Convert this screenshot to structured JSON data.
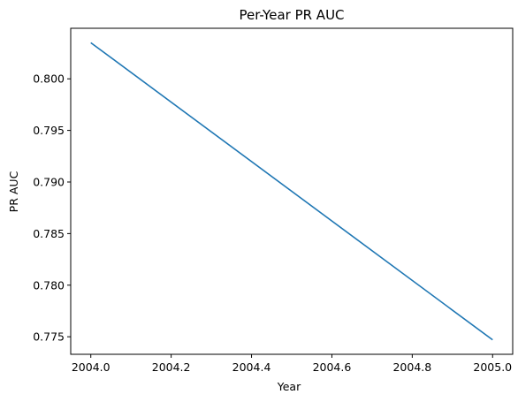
{
  "chart_data": {
    "type": "line",
    "title": "Per-Year PR AUC",
    "xlabel": "Year",
    "ylabel": "PR AUC",
    "xlim": [
      2003.95,
      2005.05
    ],
    "ylim": [
      0.7733,
      0.8049
    ],
    "x_ticks": [
      2004.0,
      2004.2,
      2004.4,
      2004.6,
      2004.8,
      2005.0
    ],
    "x_tick_labels": [
      "2004.0",
      "2004.2",
      "2004.4",
      "2004.6",
      "2004.8",
      "2005.0"
    ],
    "y_ticks": [
      0.775,
      0.78,
      0.785,
      0.79,
      0.795,
      0.8
    ],
    "y_tick_labels": [
      "0.775",
      "0.780",
      "0.785",
      "0.790",
      "0.795",
      "0.800"
    ],
    "grid": false,
    "legend": "none",
    "series": [
      {
        "color": "#1f77b4",
        "x": [
          2004.0,
          2005.0
        ],
        "y": [
          0.8035,
          0.7747
        ]
      }
    ]
  }
}
